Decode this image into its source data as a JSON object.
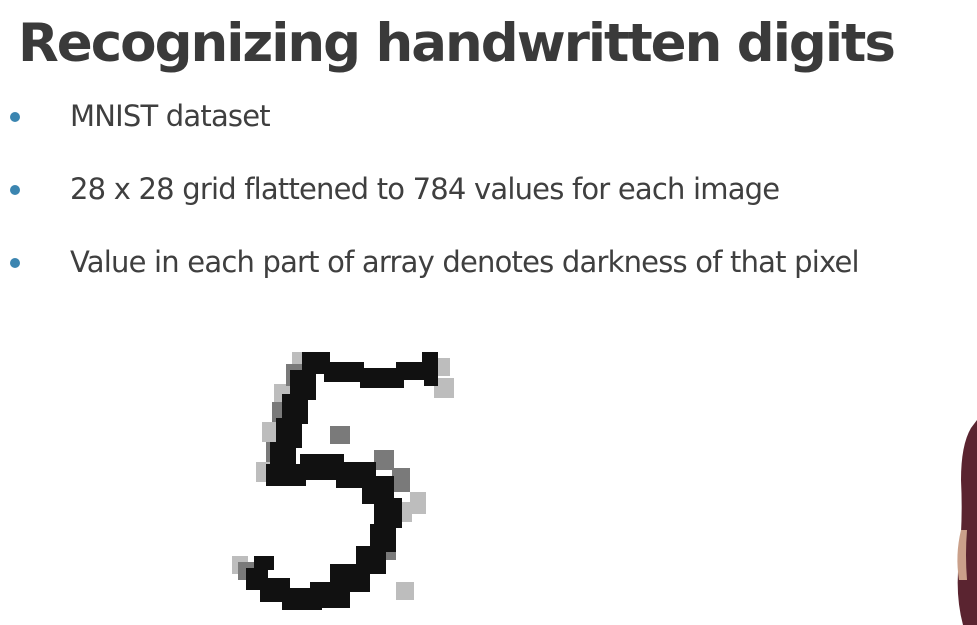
{
  "slide": {
    "title": "Recognizing handwritten digits",
    "bullets": [
      "MNIST dataset",
      "28 x 28 grid flattened to 784 values for each image",
      "Value in each part of array denotes darkness of that pixel"
    ],
    "bullet_color": "#3b85b0",
    "title_color": "#3a3a3a",
    "text_color": "#3f3f3f"
  },
  "digit_image": {
    "icon": "handwritten-digit-5-icon",
    "grid_size": "28 x 28"
  }
}
